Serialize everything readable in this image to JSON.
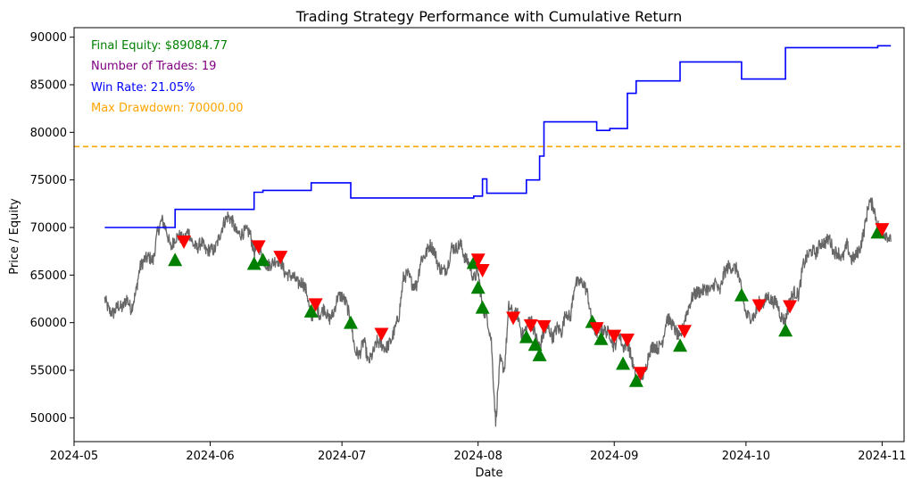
{
  "chart_data": {
    "type": "line",
    "title": "Trading Strategy Performance with Cumulative Return",
    "xlabel": "Date",
    "ylabel": "Price / Equity",
    "xlim": [
      "2024-05-01",
      "2024-11-06"
    ],
    "ylim": [
      47500,
      91000
    ],
    "x_ticks": [
      "2024-05",
      "2024-06",
      "2024-07",
      "2024-08",
      "2024-09",
      "2024-10",
      "2024-11"
    ],
    "x_tick_dates": [
      "2024-05-01",
      "2024-06-01",
      "2024-07-01",
      "2024-08-01",
      "2024-09-01",
      "2024-10-01",
      "2024-11-01"
    ],
    "y_ticks": [
      50000,
      55000,
      60000,
      65000,
      70000,
      75000,
      80000,
      85000,
      90000
    ],
    "grid": false,
    "annotations": [
      {
        "text": "Final Equity: $89084.77",
        "color": "#008000"
      },
      {
        "text": "Number of Trades: 19",
        "color": "#800080"
      },
      {
        "text": "Win Rate: 21.05%",
        "color": "#0000ff"
      },
      {
        "text": "Max Drawdown: 70000.00",
        "color": "#ffa500"
      }
    ],
    "hline": {
      "y": 78500,
      "color": "#ffa500",
      "style": "dashed"
    },
    "series": [
      {
        "color": "#666666",
        "points": [
          [
            "2024-05-08",
            62500
          ],
          [
            "2024-05-09",
            61200
          ],
          [
            "2024-05-10",
            61000
          ],
          [
            "2024-05-11",
            61800
          ],
          [
            "2024-05-12",
            61500
          ],
          [
            "2024-05-13",
            62600
          ],
          [
            "2024-05-14",
            61400
          ],
          [
            "2024-05-15",
            63000
          ],
          [
            "2024-05-16",
            65800
          ],
          [
            "2024-05-17",
            66600
          ],
          [
            "2024-05-18",
            66900
          ],
          [
            "2024-05-19",
            66500
          ],
          [
            "2024-05-20",
            69500
          ],
          [
            "2024-05-21",
            70800
          ],
          [
            "2024-05-22",
            69800
          ],
          [
            "2024-05-23",
            67800
          ],
          [
            "2024-05-24",
            68900
          ],
          [
            "2024-05-25",
            69100
          ],
          [
            "2024-05-26",
            68600
          ],
          [
            "2024-05-27",
            69700
          ],
          [
            "2024-05-28",
            68300
          ],
          [
            "2024-05-29",
            67800
          ],
          [
            "2024-05-30",
            68500
          ],
          [
            "2024-05-31",
            67500
          ],
          [
            "2024-06-01",
            67700
          ],
          [
            "2024-06-02",
            67600
          ],
          [
            "2024-06-03",
            68900
          ],
          [
            "2024-06-04",
            70400
          ],
          [
            "2024-06-05",
            71200
          ],
          [
            "2024-06-06",
            70700
          ],
          [
            "2024-06-07",
            69400
          ],
          [
            "2024-06-08",
            69300
          ],
          [
            "2024-06-09",
            69600
          ],
          [
            "2024-06-10",
            69500
          ],
          [
            "2024-06-11",
            67400
          ],
          [
            "2024-06-12",
            68100
          ],
          [
            "2024-06-13",
            66700
          ],
          [
            "2024-06-14",
            66000
          ],
          [
            "2024-06-15",
            66200
          ],
          [
            "2024-06-16",
            66600
          ],
          [
            "2024-06-17",
            66500
          ],
          [
            "2024-06-18",
            65200
          ],
          [
            "2024-06-19",
            65000
          ],
          [
            "2024-06-20",
            64800
          ],
          [
            "2024-06-21",
            64100
          ],
          [
            "2024-06-22",
            64300
          ],
          [
            "2024-06-23",
            63200
          ],
          [
            "2024-06-24",
            60300
          ],
          [
            "2024-06-25",
            61800
          ],
          [
            "2024-06-26",
            60800
          ],
          [
            "2024-06-27",
            61600
          ],
          [
            "2024-06-28",
            60300
          ],
          [
            "2024-06-29",
            60900
          ],
          [
            "2024-06-30",
            62700
          ],
          [
            "2024-07-01",
            62800
          ],
          [
            "2024-07-02",
            62000
          ],
          [
            "2024-07-03",
            60200
          ],
          [
            "2024-07-04",
            57000
          ],
          [
            "2024-07-05",
            56600
          ],
          [
            "2024-07-06",
            58200
          ],
          [
            "2024-07-07",
            55800
          ],
          [
            "2024-07-08",
            56700
          ],
          [
            "2024-07-09",
            58000
          ],
          [
            "2024-07-10",
            57700
          ],
          [
            "2024-07-11",
            57300
          ],
          [
            "2024-07-12",
            57900
          ],
          [
            "2024-07-13",
            59200
          ],
          [
            "2024-07-14",
            60800
          ],
          [
            "2024-07-15",
            64700
          ],
          [
            "2024-07-16",
            65100
          ],
          [
            "2024-07-17",
            64100
          ],
          [
            "2024-07-18",
            63900
          ],
          [
            "2024-07-19",
            66700
          ],
          [
            "2024-07-20",
            67100
          ],
          [
            "2024-07-21",
            68200
          ],
          [
            "2024-07-22",
            67600
          ],
          [
            "2024-07-23",
            65900
          ],
          [
            "2024-07-24",
            65400
          ],
          [
            "2024-07-25",
            65800
          ],
          [
            "2024-07-26",
            67900
          ],
          [
            "2024-07-27",
            67800
          ],
          [
            "2024-07-28",
            68300
          ],
          [
            "2024-07-29",
            66800
          ],
          [
            "2024-07-30",
            66200
          ],
          [
            "2024-07-31",
            64600
          ],
          [
            "2024-08-01",
            65300
          ],
          [
            "2024-08-02",
            61500
          ],
          [
            "2024-08-03",
            60700
          ],
          [
            "2024-08-04",
            58100
          ],
          [
            "2024-08-05",
            49500
          ],
          [
            "2024-08-06",
            56000
          ],
          [
            "2024-08-07",
            55100
          ],
          [
            "2024-08-08",
            61700
          ],
          [
            "2024-08-09",
            60900
          ],
          [
            "2024-08-10",
            60900
          ],
          [
            "2024-08-11",
            58700
          ],
          [
            "2024-08-12",
            59400
          ],
          [
            "2024-08-13",
            60600
          ],
          [
            "2024-08-14",
            58700
          ],
          [
            "2024-08-15",
            57500
          ],
          [
            "2024-08-16",
            58900
          ],
          [
            "2024-08-17",
            59500
          ],
          [
            "2024-08-18",
            58400
          ],
          [
            "2024-08-19",
            59500
          ],
          [
            "2024-08-20",
            59000
          ],
          [
            "2024-08-21",
            61200
          ],
          [
            "2024-08-22",
            60400
          ],
          [
            "2024-08-23",
            64100
          ],
          [
            "2024-08-24",
            64200
          ],
          [
            "2024-08-25",
            64200
          ],
          [
            "2024-08-26",
            62900
          ],
          [
            "2024-08-27",
            59500
          ],
          [
            "2024-08-28",
            59000
          ],
          [
            "2024-08-29",
            59400
          ],
          [
            "2024-08-30",
            59100
          ],
          [
            "2024-08-31",
            58900
          ],
          [
            "2024-09-01",
            57300
          ],
          [
            "2024-09-02",
            59100
          ],
          [
            "2024-09-03",
            57400
          ],
          [
            "2024-09-04",
            57900
          ],
          [
            "2024-09-05",
            56200
          ],
          [
            "2024-09-06",
            53900
          ],
          [
            "2024-09-07",
            54200
          ],
          [
            "2024-09-08",
            54800
          ],
          [
            "2024-09-09",
            57000
          ],
          [
            "2024-09-10",
            57600
          ],
          [
            "2024-09-11",
            57300
          ],
          [
            "2024-09-12",
            58100
          ],
          [
            "2024-09-13",
            60500
          ],
          [
            "2024-09-14",
            60000
          ],
          [
            "2024-09-15",
            59100
          ],
          [
            "2024-09-16",
            58200
          ],
          [
            "2024-09-17",
            60300
          ],
          [
            "2024-09-18",
            61700
          ],
          [
            "2024-09-19",
            62900
          ],
          [
            "2024-09-20",
            63200
          ],
          [
            "2024-09-21",
            63300
          ],
          [
            "2024-09-22",
            63600
          ],
          [
            "2024-09-23",
            63300
          ],
          [
            "2024-09-24",
            64300
          ],
          [
            "2024-09-25",
            63100
          ],
          [
            "2024-09-26",
            65200
          ],
          [
            "2024-09-27",
            65900
          ],
          [
            "2024-09-28",
            65800
          ],
          [
            "2024-09-29",
            65600
          ],
          [
            "2024-09-30",
            63300
          ],
          [
            "2024-10-01",
            60800
          ],
          [
            "2024-10-02",
            60600
          ],
          [
            "2024-10-03",
            60700
          ],
          [
            "2024-10-04",
            62100
          ],
          [
            "2024-10-05",
            62000
          ],
          [
            "2024-10-06",
            62800
          ],
          [
            "2024-10-07",
            62200
          ],
          [
            "2024-10-08",
            62100
          ],
          [
            "2024-10-09",
            60600
          ],
          [
            "2024-10-10",
            60200
          ],
          [
            "2024-10-11",
            62400
          ],
          [
            "2024-10-12",
            63200
          ],
          [
            "2024-10-13",
            62900
          ],
          [
            "2024-10-14",
            66000
          ],
          [
            "2024-10-15",
            67000
          ],
          [
            "2024-10-16",
            67600
          ],
          [
            "2024-10-17",
            67300
          ],
          [
            "2024-10-18",
            68400
          ],
          [
            "2024-10-19",
            68400
          ],
          [
            "2024-10-20",
            68900
          ],
          [
            "2024-10-21",
            67400
          ],
          [
            "2024-10-22",
            67400
          ],
          [
            "2024-10-23",
            66700
          ],
          [
            "2024-10-24",
            68200
          ],
          [
            "2024-10-25",
            66600
          ],
          [
            "2024-10-26",
            67000
          ],
          [
            "2024-10-27",
            67900
          ],
          [
            "2024-10-28",
            69900
          ],
          [
            "2024-10-29",
            72700
          ],
          [
            "2024-10-30",
            72300
          ],
          [
            "2024-10-31",
            70200
          ],
          [
            "2024-11-01",
            69500
          ],
          [
            "2024-11-02",
            69300
          ],
          [
            "2024-11-03",
            68500
          ]
        ]
      },
      {
        "color": "#0000ff",
        "step": true,
        "points": [
          [
            "2024-05-08",
            70000
          ],
          [
            "2024-05-24",
            71900
          ],
          [
            "2024-06-11",
            73700
          ],
          [
            "2024-06-13",
            73900
          ],
          [
            "2024-06-24",
            74700
          ],
          [
            "2024-07-03",
            73100
          ],
          [
            "2024-07-31",
            73300
          ],
          [
            "2024-08-02",
            75100
          ],
          [
            "2024-08-03",
            73600
          ],
          [
            "2024-08-12",
            75000
          ],
          [
            "2024-08-15",
            77500
          ],
          [
            "2024-08-16",
            81100
          ],
          [
            "2024-08-28",
            80200
          ],
          [
            "2024-08-31",
            80400
          ],
          [
            "2024-09-04",
            84100
          ],
          [
            "2024-09-06",
            85400
          ],
          [
            "2024-09-16",
            87400
          ],
          [
            "2024-09-30",
            85600
          ],
          [
            "2024-10-10",
            88900
          ],
          [
            "2024-10-31",
            89100
          ],
          [
            "2024-11-03",
            89100
          ]
        ]
      }
    ],
    "buy_signals": {
      "color": "#008000",
      "points": [
        [
          "2024-05-24",
          66600
        ],
        [
          "2024-06-11",
          66200
        ],
        [
          "2024-06-13",
          66600
        ],
        [
          "2024-06-24",
          61200
        ],
        [
          "2024-07-03",
          60000
        ],
        [
          "2024-07-31",
          66300
        ],
        [
          "2024-08-01",
          63700
        ],
        [
          "2024-08-02",
          61600
        ],
        [
          "2024-08-12",
          58500
        ],
        [
          "2024-08-14",
          57700
        ],
        [
          "2024-08-15",
          56600
        ],
        [
          "2024-08-27",
          60100
        ],
        [
          "2024-08-29",
          58300
        ],
        [
          "2024-09-03",
          55700
        ],
        [
          "2024-09-06",
          53900
        ],
        [
          "2024-09-16",
          57600
        ],
        [
          "2024-09-30",
          62900
        ],
        [
          "2024-10-10",
          59200
        ],
        [
          "2024-10-31",
          69500
        ]
      ]
    },
    "sell_signals": {
      "color": "#ff0000",
      "points": [
        [
          "2024-05-26",
          68500
        ],
        [
          "2024-06-12",
          68000
        ],
        [
          "2024-06-17",
          66900
        ],
        [
          "2024-06-25",
          61900
        ],
        [
          "2024-07-10",
          58800
        ],
        [
          "2024-08-01",
          66600
        ],
        [
          "2024-08-02",
          65500
        ],
        [
          "2024-08-09",
          60500
        ],
        [
          "2024-08-13",
          59700
        ],
        [
          "2024-08-16",
          59600
        ],
        [
          "2024-08-28",
          59400
        ],
        [
          "2024-09-01",
          58600
        ],
        [
          "2024-09-04",
          58200
        ],
        [
          "2024-09-07",
          54700
        ],
        [
          "2024-09-17",
          59100
        ],
        [
          "2024-10-04",
          61800
        ],
        [
          "2024-10-11",
          61700
        ],
        [
          "2024-11-01",
          69800
        ]
      ]
    }
  }
}
